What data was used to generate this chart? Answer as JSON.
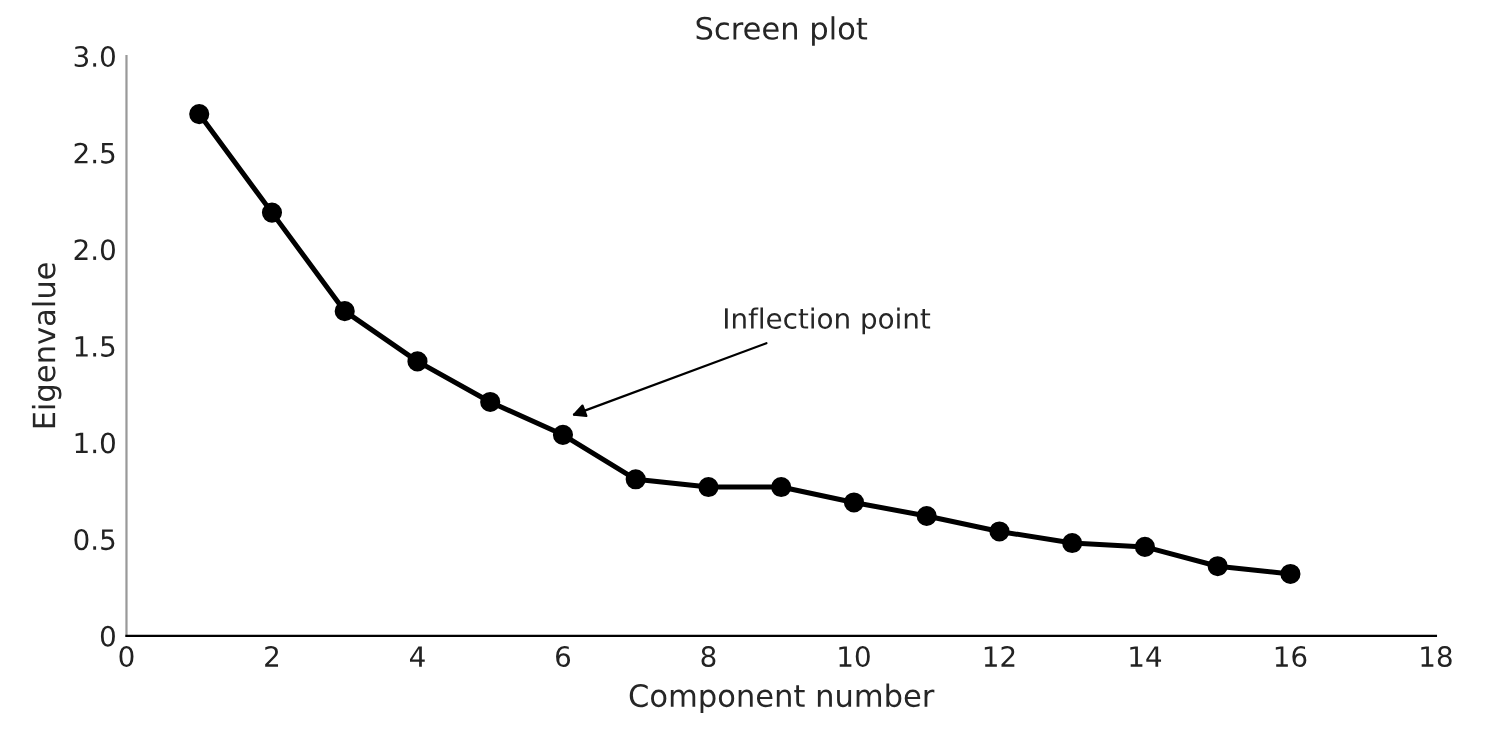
{
  "chart_data": {
    "type": "line",
    "title": "Screen plot",
    "xlabel": "Component number",
    "ylabel": "Eigenvalue",
    "x": [
      1,
      2,
      3,
      4,
      5,
      6,
      7,
      8,
      9,
      10,
      11,
      12,
      13,
      14,
      15,
      16
    ],
    "series": [
      {
        "color": "#000000",
        "values": [
          2.7,
          2.19,
          1.68,
          1.42,
          1.21,
          1.04,
          0.81,
          0.77,
          0.77,
          0.69,
          0.62,
          0.54,
          0.48,
          0.46,
          0.36,
          0.32
        ]
      }
    ],
    "marker": "circle",
    "line_style": "solid",
    "grid": false,
    "xlim": [
      0,
      18
    ],
    "xticks": [
      0,
      2,
      4,
      6,
      8,
      10,
      12,
      14,
      16,
      18
    ],
    "ylim": [
      0,
      3.0
    ],
    "yticks": [
      0,
      {
        "value": 0.5,
        "label": "0.5"
      },
      {
        "value": 1.0,
        "label": "1.0"
      },
      {
        "value": 1.5,
        "label": "1.5"
      },
      {
        "value": 2.0,
        "label": "2.0"
      },
      {
        "value": 2.5,
        "label": "2.5"
      },
      {
        "value": 3.0,
        "label": "3.0"
      }
    ],
    "annotations": [
      "Inflection point"
    ]
  }
}
